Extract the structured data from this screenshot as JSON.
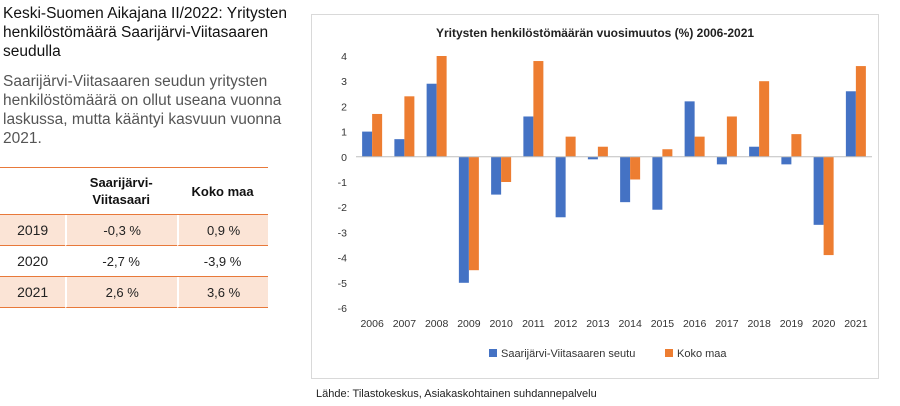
{
  "title": "Keski-Suomen Aikajana II/2022: Yritysten henkilöstömäärä Saarijärvi-Viitasaaren seudulla",
  "subtitle": "Saarijärvi-Viitasaaren seudun yritysten henkilöstömäärä on ollut useana vuonna laskussa, mutta kääntyi kasvuun vuonna 2021.",
  "table": {
    "headers": [
      "",
      "Saarijärvi-Viitasaari",
      "Koko maa"
    ],
    "rows": [
      {
        "year": "2019",
        "a": "-0,3 %",
        "b": "0,9 %"
      },
      {
        "year": "2020",
        "a": "-2,7 %",
        "b": "-3,9 %"
      },
      {
        "year": "2021",
        "a": "2,6 %",
        "b": "3,6 %"
      }
    ]
  },
  "source": "Lähde: Tilastokeskus, Asiakaskohtainen suhdannepalvelu",
  "colors": {
    "accent": "#e8793a",
    "row_shade": "#fbe4d6",
    "series_a": "#4472c4",
    "series_b": "#ed7d31"
  },
  "chart_data": {
    "type": "bar",
    "title": "Yritysten henkilöstömäärän vuosimuutos (%) 2006-2021",
    "xlabel": "",
    "ylabel": "",
    "ylim": [
      -6,
      4
    ],
    "yticks": [
      -6,
      -5,
      -4,
      -3,
      -2,
      -1,
      0,
      1,
      2,
      3,
      4
    ],
    "grid": false,
    "legend": "bottom",
    "categories": [
      "2006",
      "2007",
      "2008",
      "2009",
      "2010",
      "2011",
      "2012",
      "2013",
      "2014",
      "2015",
      "2016",
      "2017",
      "2018",
      "2019",
      "2020",
      "2021"
    ],
    "series": [
      {
        "name": "Saarijärvi-Viitasaaren seutu",
        "color": "#4472c4",
        "values": [
          1.0,
          0.7,
          2.9,
          -5.0,
          -1.5,
          1.6,
          -2.4,
          -0.1,
          -1.8,
          -2.1,
          2.2,
          -0.3,
          0.4,
          -0.3,
          -2.7,
          2.6
        ]
      },
      {
        "name": "Koko maa",
        "color": "#ed7d31",
        "values": [
          1.7,
          2.4,
          4.0,
          -4.5,
          -1.0,
          3.8,
          0.8,
          0.4,
          -0.9,
          0.3,
          0.8,
          1.6,
          3.0,
          0.9,
          -3.9,
          3.6
        ]
      }
    ]
  }
}
